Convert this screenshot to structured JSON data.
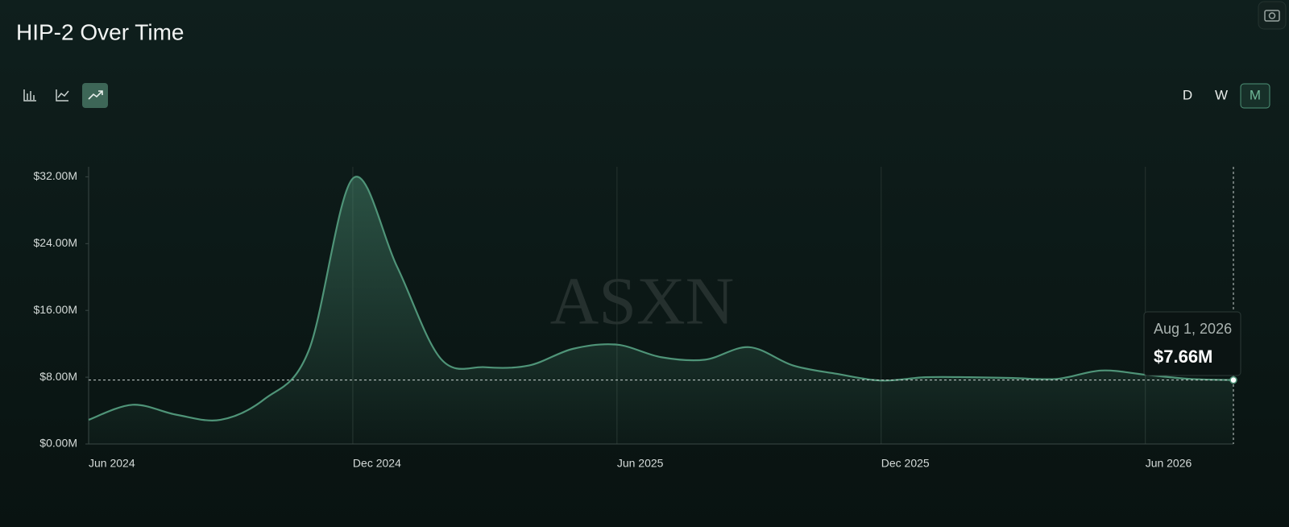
{
  "title": "HIP-2 Over Time",
  "controls": {
    "chart_types": [
      "bar",
      "line",
      "area"
    ],
    "intervals": [
      "D",
      "W",
      "M"
    ],
    "active_interval": "M"
  },
  "chart_data": {
    "type": "area",
    "color": "#4f9478",
    "watermark": "ASXN",
    "x": [
      "2024-06",
      "2024-07",
      "2024-08",
      "2024-09",
      "2024-10",
      "2024-11",
      "2024-12",
      "2025-01",
      "2025-02",
      "2025-03",
      "2025-04",
      "2025-05",
      "2025-06",
      "2025-07",
      "2025-08",
      "2025-09",
      "2025-10",
      "2025-11",
      "2025-12",
      "2026-01",
      "2026-02",
      "2026-03",
      "2026-04",
      "2026-05",
      "2026-06",
      "2026-07",
      "2026-08"
    ],
    "values": [
      2.9,
      4.7,
      3.5,
      2.9,
      5.4,
      11.2,
      31.8,
      21.3,
      10.2,
      9.2,
      9.4,
      11.4,
      11.9,
      10.4,
      10.1,
      11.6,
      9.4,
      8.4,
      7.6,
      8.0,
      8.0,
      7.9,
      7.8,
      8.8,
      8.3,
      7.8,
      7.66
    ],
    "xlim": [
      "2024-06",
      "2026-08"
    ],
    "xticks": [
      {
        "value": "2024-06",
        "label": "Jun 2024"
      },
      {
        "value": "2024-12",
        "label": "Dec 2024"
      },
      {
        "value": "2025-06",
        "label": "Jun 2025"
      },
      {
        "value": "2025-12",
        "label": "Dec 2025"
      },
      {
        "value": "2026-06",
        "label": "Jun 2026"
      }
    ],
    "ylim": [
      0,
      33.2
    ],
    "yticks": [
      {
        "value": 0,
        "label": "$0.00M"
      },
      {
        "value": 8,
        "label": "$8.00M"
      },
      {
        "value": 16,
        "label": "$16.00M"
      },
      {
        "value": 24,
        "label": "$24.00M"
      },
      {
        "value": 32,
        "label": "$32.00M"
      }
    ],
    "grid": true,
    "tooltip": {
      "date": "Aug 1, 2026",
      "value": 7.66,
      "label": "$7.66M"
    }
  }
}
